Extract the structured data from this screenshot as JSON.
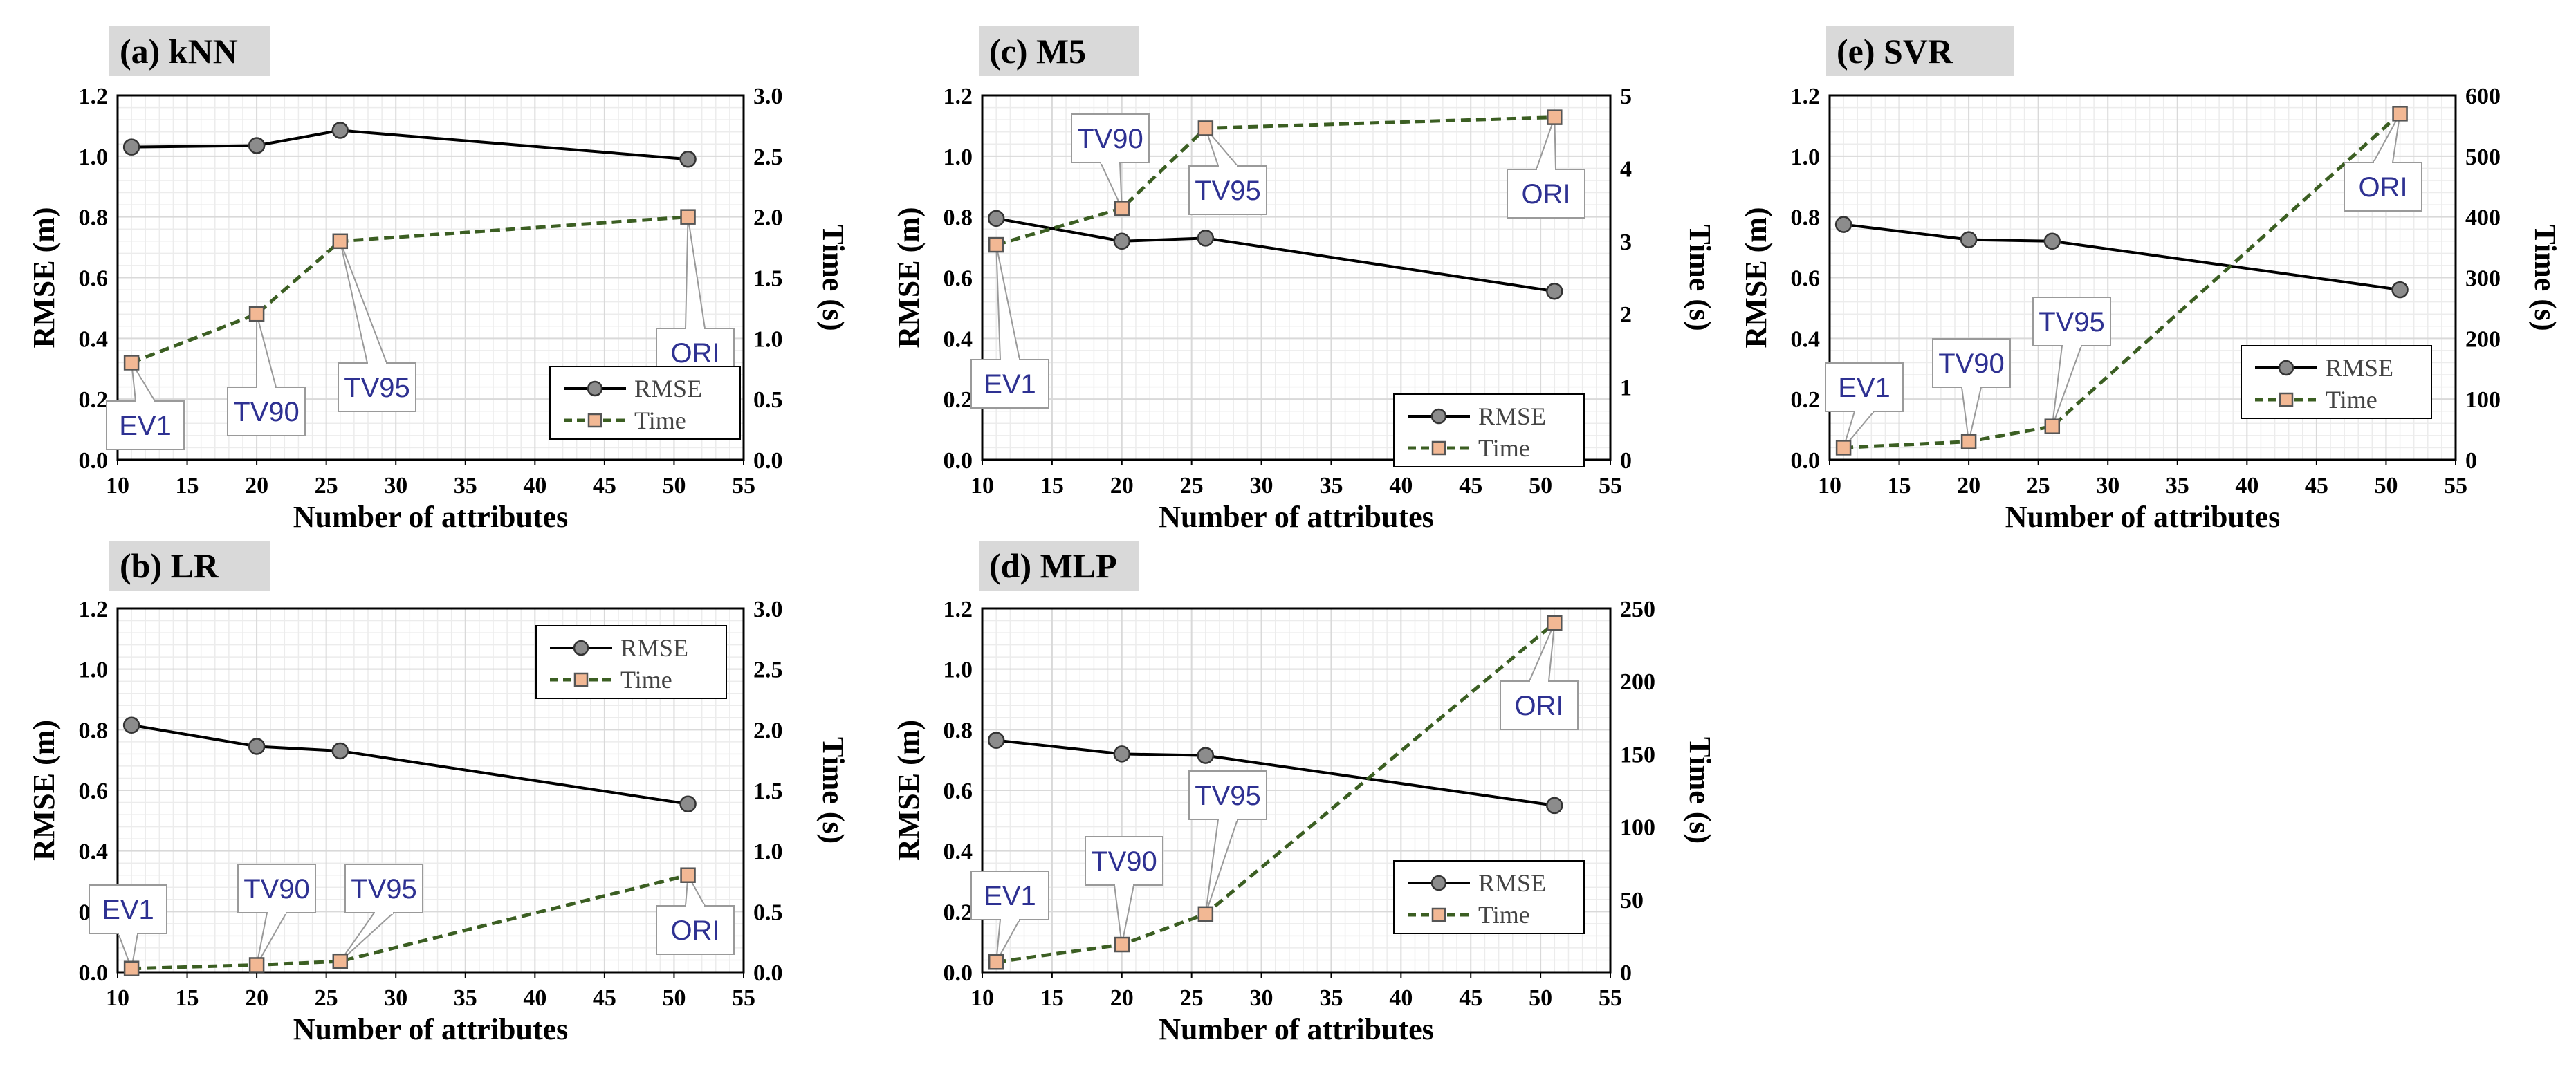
{
  "colors": {
    "rmse_line": "#000000",
    "rmse_marker": "#8c8c8c",
    "time_line": "#3b5e22",
    "time_marker": "#f2b894",
    "callout_text": "#2e3192",
    "panel_title_bg": "#d9d9d9",
    "grid": "#d9d9d9"
  },
  "chart_data": [
    {
      "id": "knn",
      "type": "line",
      "title": "(a) kNN",
      "xlabel": "Number of attributes",
      "ylabel_left": "RMSE (m)",
      "ylabel_right": "Time (s)",
      "xlim": [
        10,
        55
      ],
      "xticks": [
        "10",
        "15",
        "20",
        "25",
        "30",
        "35",
        "40",
        "45",
        "50",
        "55"
      ],
      "ylim_left": [
        0,
        1.2
      ],
      "yticks_left": [
        "0.0",
        "0.2",
        "0.4",
        "0.6",
        "0.8",
        "1.0",
        "1.2"
      ],
      "ylim_right": [
        0,
        3.0
      ],
      "yticks_right": [
        "0.0",
        "0.5",
        "1.0",
        "1.5",
        "2.0",
        "2.5",
        "3.0"
      ],
      "x": [
        11,
        20,
        26,
        51
      ],
      "series": [
        {
          "name": "RMSE",
          "axis": "left",
          "values": [
            1.03,
            1.035,
            1.085,
            0.99
          ]
        },
        {
          "name": "Time",
          "axis": "right",
          "values": [
            0.8,
            1.2,
            1.8,
            2.0
          ]
        }
      ],
      "annotations": [
        "EV1",
        "TV90",
        "TV95",
        "ORI"
      ],
      "legend": "bottom-right",
      "grid": true
    },
    {
      "id": "lr",
      "type": "line",
      "title": "(b) LR",
      "xlabel": "Number of attributes",
      "ylabel_left": "RMSE (m)",
      "ylabel_right": "Time (s)",
      "xlim": [
        10,
        55
      ],
      "xticks": [
        "10",
        "15",
        "20",
        "25",
        "30",
        "35",
        "40",
        "45",
        "50",
        "55"
      ],
      "ylim_left": [
        0,
        1.2
      ],
      "yticks_left": [
        "0.0",
        "0.2",
        "0.4",
        "0.6",
        "0.8",
        "1.0",
        "1.2"
      ],
      "ylim_right": [
        0,
        3.0
      ],
      "yticks_right": [
        "0.0",
        "0.5",
        "1.0",
        "1.5",
        "2.0",
        "2.5",
        "3.0"
      ],
      "x": [
        11,
        20,
        26,
        51
      ],
      "series": [
        {
          "name": "RMSE",
          "axis": "left",
          "values": [
            0.815,
            0.745,
            0.73,
            0.555
          ]
        },
        {
          "name": "Time",
          "axis": "right",
          "values": [
            0.03,
            0.06,
            0.09,
            0.8
          ]
        }
      ],
      "annotations": [
        "EV1",
        "TV90",
        "TV95",
        "ORI"
      ],
      "legend": "top-right",
      "grid": true
    },
    {
      "id": "m5",
      "type": "line",
      "title": "(c) M5",
      "xlabel": "Number of attributes",
      "ylabel_left": "RMSE (m)",
      "ylabel_right": "Time (s)",
      "xlim": [
        10,
        55
      ],
      "xticks": [
        "10",
        "15",
        "20",
        "25",
        "30",
        "35",
        "40",
        "45",
        "50",
        "55"
      ],
      "ylim_left": [
        0,
        1.2
      ],
      "yticks_left": [
        "0.0",
        "0.2",
        "0.4",
        "0.6",
        "0.8",
        "1.0",
        "1.2"
      ],
      "ylim_right": [
        0,
        5
      ],
      "yticks_right": [
        "0",
        "1",
        "2",
        "3",
        "4",
        "5"
      ],
      "x": [
        11,
        20,
        26,
        51
      ],
      "series": [
        {
          "name": "RMSE",
          "axis": "left",
          "values": [
            0.795,
            0.72,
            0.73,
            0.555
          ]
        },
        {
          "name": "Time",
          "axis": "right",
          "values": [
            2.95,
            3.45,
            4.55,
            4.7
          ]
        }
      ],
      "annotations": [
        "EV1",
        "TV90",
        "TV95",
        "ORI"
      ],
      "legend": "bottom-right",
      "grid": true
    },
    {
      "id": "mlp",
      "type": "line",
      "title": "(d) MLP",
      "xlabel": "Number of attributes",
      "ylabel_left": "RMSE (m)",
      "ylabel_right": "Time (s)",
      "xlim": [
        10,
        55
      ],
      "xticks": [
        "10",
        "15",
        "20",
        "25",
        "30",
        "35",
        "40",
        "45",
        "50",
        "55"
      ],
      "ylim_left": [
        0,
        1.2
      ],
      "yticks_left": [
        "0.0",
        "0.2",
        "0.4",
        "0.6",
        "0.8",
        "1.0",
        "1.2"
      ],
      "ylim_right": [
        0,
        250
      ],
      "yticks_right": [
        "0",
        "50",
        "100",
        "150",
        "200",
        "250"
      ],
      "x": [
        11,
        20,
        26,
        51
      ],
      "series": [
        {
          "name": "RMSE",
          "axis": "left",
          "values": [
            0.765,
            0.72,
            0.715,
            0.55
          ]
        },
        {
          "name": "Time",
          "axis": "right",
          "values": [
            7,
            19,
            40,
            240
          ]
        }
      ],
      "annotations": [
        "EV1",
        "TV90",
        "TV95",
        "ORI"
      ],
      "legend": "bottom-right",
      "grid": true
    },
    {
      "id": "svr",
      "type": "line",
      "title": "(e) SVR",
      "xlabel": "Number of attributes",
      "ylabel_left": "RMSE (m)",
      "ylabel_right": "Time (s)",
      "xlim": [
        10,
        55
      ],
      "xticks": [
        "10",
        "15",
        "20",
        "25",
        "30",
        "35",
        "40",
        "45",
        "50",
        "55"
      ],
      "ylim_left": [
        0,
        1.2
      ],
      "yticks_left": [
        "0.0",
        "0.2",
        "0.4",
        "0.6",
        "0.8",
        "1.0",
        "1.2"
      ],
      "ylim_right": [
        0,
        600
      ],
      "yticks_right": [
        "0",
        "100",
        "200",
        "300",
        "400",
        "500",
        "600"
      ],
      "x": [
        11,
        20,
        26,
        51
      ],
      "series": [
        {
          "name": "RMSE",
          "axis": "left",
          "values": [
            0.775,
            0.725,
            0.72,
            0.56
          ]
        },
        {
          "name": "Time",
          "axis": "right",
          "values": [
            20,
            30,
            55,
            570
          ]
        }
      ],
      "annotations": [
        "EV1",
        "TV90",
        "TV95",
        "ORI"
      ],
      "legend": "bottom-right",
      "grid": true
    }
  ]
}
